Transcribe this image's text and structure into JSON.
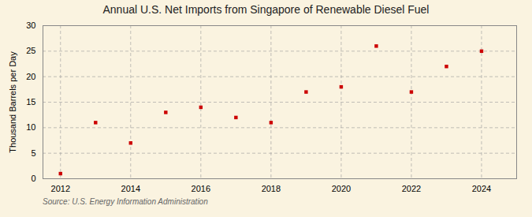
{
  "chart_data": {
    "type": "scatter",
    "title": "Annual U.S. Net Imports from Singapore of Renewable Diesel Fuel",
    "ylabel": "Thousand Barrels per Day",
    "annotation": "Source: U.S. Energy Information Administration",
    "x": [
      2012,
      2013,
      2014,
      2015,
      2016,
      2017,
      2018,
      2019,
      2020,
      2021,
      2022,
      2023,
      2024
    ],
    "values": [
      1,
      11,
      7,
      13,
      14,
      12,
      11,
      17,
      18,
      26,
      17,
      22,
      25
    ],
    "color": "#cc0000",
    "marker": "square",
    "xlim": [
      2011.5,
      2025.0
    ],
    "xticks": [
      2012,
      2014,
      2016,
      2018,
      2020,
      2022,
      2024
    ],
    "ylim": [
      0,
      30
    ],
    "yticks": [
      0,
      5,
      10,
      15,
      20,
      25,
      30
    ],
    "grid": true
  }
}
